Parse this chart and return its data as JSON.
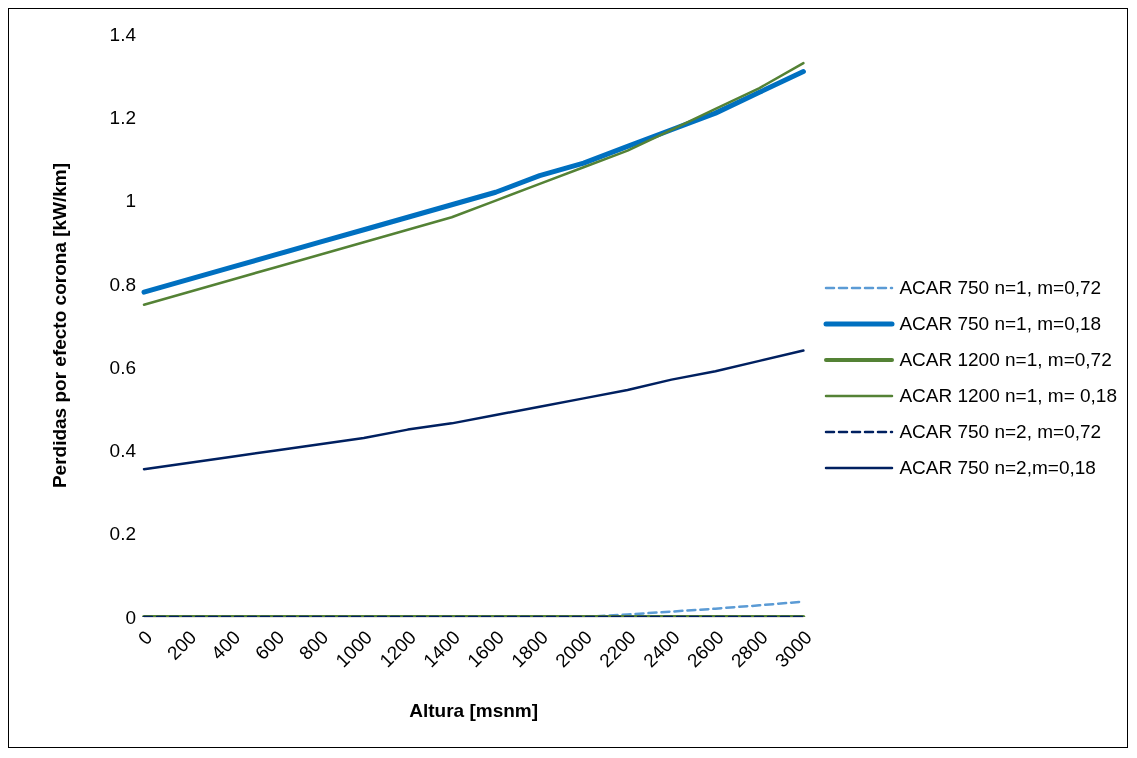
{
  "chart_data": {
    "type": "line",
    "xlabel": "Altura [msnm]",
    "ylabel": "Perdidas por efecto corona [kW/km]",
    "categories": [
      "0",
      "200",
      "400",
      "600",
      "800",
      "1000",
      "1200",
      "1400",
      "1600",
      "1800",
      "2000",
      "2200",
      "2400",
      "2600",
      "2800",
      "3000"
    ],
    "series": [
      {
        "name": "ACAR 750 n=1, m=0,72",
        "color": "#5b9bd5",
        "line_style": "dashed",
        "values": [
          null,
          null,
          null,
          null,
          null,
          null,
          null,
          null,
          null,
          null,
          0,
          0.006,
          0.013,
          0.02,
          0.028,
          0.037
        ]
      },
      {
        "name": "ACAR 750 n=1, m=0,18",
        "color": "#0070c0",
        "line_style": "solid",
        "values": [
          0.78,
          0.81,
          0.84,
          0.87,
          0.9,
          0.93,
          0.96,
          0.99,
          1.02,
          1.06,
          1.09,
          1.13,
          1.17,
          1.21,
          1.26,
          1.31
        ]
      },
      {
        "name": "ACAR 1200 n=1, m=0,72",
        "color": "#548235",
        "line_style": "solid",
        "values": [
          0,
          0,
          0,
          0,
          0,
          0,
          0,
          0,
          0,
          0,
          0,
          0,
          0,
          0,
          0,
          0
        ]
      },
      {
        "name": "ACAR 1200 n=1, m= 0,18",
        "color": "#548235",
        "line_style": "solid",
        "values": [
          0.75,
          0.78,
          0.81,
          0.84,
          0.87,
          0.9,
          0.93,
          0.96,
          1.0,
          1.04,
          1.08,
          1.12,
          1.17,
          1.22,
          1.27,
          1.33
        ]
      },
      {
        "name": "ACAR 750 n=2, m=0,72",
        "color": "#002060",
        "line_style": "dashed",
        "values": [
          0,
          0,
          0,
          0,
          0,
          0,
          0,
          0,
          0,
          0,
          0,
          0,
          0,
          0,
          0,
          0
        ]
      },
      {
        "name": "ACAR 750 n=2,m=0,18",
        "color": "#002060",
        "line_style": "solid",
        "values": [
          0.355,
          0.37,
          0.385,
          0.4,
          0.415,
          0.43,
          0.45,
          0.465,
          0.485,
          0.505,
          0.525,
          0.545,
          0.57,
          0.59,
          0.615,
          0.64
        ]
      }
    ],
    "ylim": [
      0,
      1.4
    ],
    "yticks": [
      0,
      0.2,
      0.4,
      0.6,
      0.8,
      1,
      1.2,
      1.4
    ],
    "grid": false,
    "legend": "right",
    "marker": "none"
  }
}
